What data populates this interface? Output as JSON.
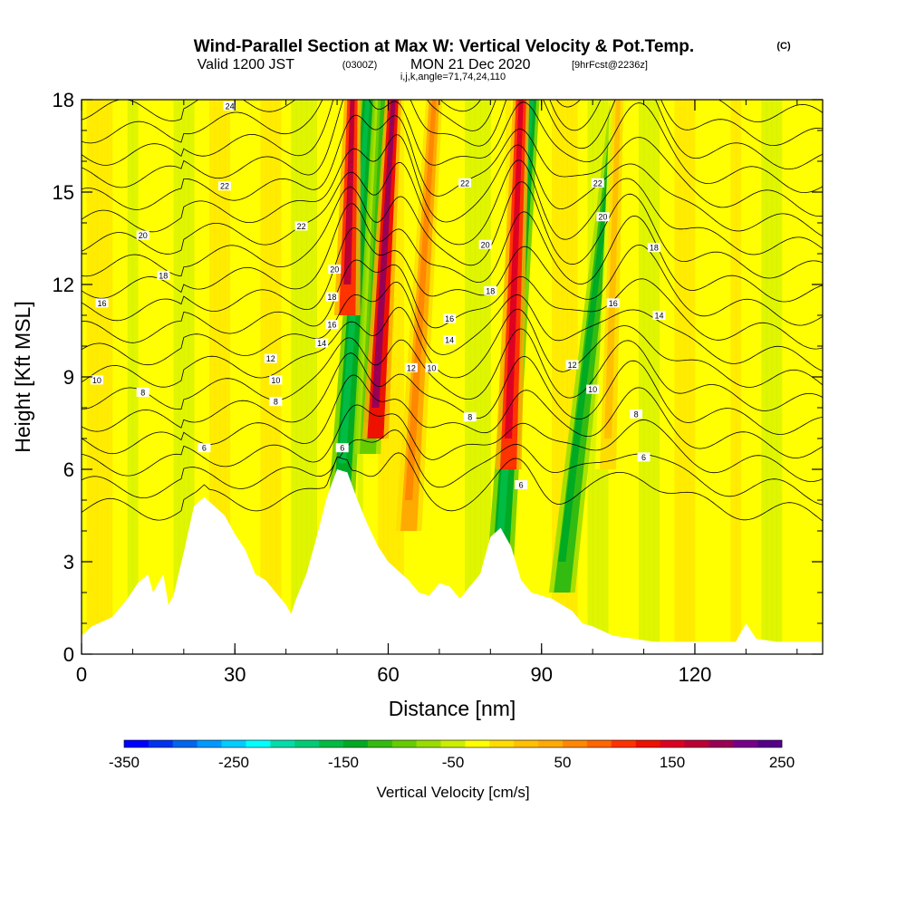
{
  "title": {
    "main": "Wind-Parallel Section at Max W: Vertical Velocity & Pot.Temp.",
    "copyright": "(C)",
    "valid_prefix": "Valid 1200 JST",
    "valid_utc": "(0300Z)",
    "valid_date": "MON 21 Dec 2020",
    "forecast": "[9hrFcst@2236z]",
    "indices": "i,j,k,angle=71,74,24,110"
  },
  "chart_data": {
    "type": "heatmap",
    "xlabel": "Distance [nm]",
    "ylabel": "Height [Kft MSL]",
    "xlim": [
      0,
      145
    ],
    "ylim": [
      0,
      18
    ],
    "xticks": [
      0,
      30,
      60,
      90,
      120
    ],
    "yticks": [
      0,
      3,
      6,
      9,
      12,
      15,
      18
    ],
    "terrain": [
      [
        0,
        0.6
      ],
      [
        2,
        0.9
      ],
      [
        6,
        1.2
      ],
      [
        9,
        1.8
      ],
      [
        11,
        2.3
      ],
      [
        13,
        2.6
      ],
      [
        14,
        2.0
      ],
      [
        16,
        2.6
      ],
      [
        17,
        1.6
      ],
      [
        18,
        1.9
      ],
      [
        20,
        3.3
      ],
      [
        22,
        4.8
      ],
      [
        24,
        5.1
      ],
      [
        26,
        4.8
      ],
      [
        28,
        4.5
      ],
      [
        30,
        3.9
      ],
      [
        32,
        3.4
      ],
      [
        34,
        2.6
      ],
      [
        36,
        2.4
      ],
      [
        38,
        2.0
      ],
      [
        40,
        1.6
      ],
      [
        41,
        1.3
      ],
      [
        42,
        1.8
      ],
      [
        44,
        2.6
      ],
      [
        46,
        3.8
      ],
      [
        48,
        5.1
      ],
      [
        50,
        6.0
      ],
      [
        52,
        5.9
      ],
      [
        54,
        5.0
      ],
      [
        56,
        4.2
      ],
      [
        58,
        3.5
      ],
      [
        60,
        3.0
      ],
      [
        62,
        2.7
      ],
      [
        64,
        2.4
      ],
      [
        66,
        2.0
      ],
      [
        68,
        1.9
      ],
      [
        70,
        2.3
      ],
      [
        72,
        2.2
      ],
      [
        74,
        1.8
      ],
      [
        76,
        2.2
      ],
      [
        78,
        2.6
      ],
      [
        80,
        3.8
      ],
      [
        82,
        4.1
      ],
      [
        84,
        3.5
      ],
      [
        86,
        2.4
      ],
      [
        88,
        2.0
      ],
      [
        90,
        1.9
      ],
      [
        92,
        1.8
      ],
      [
        94,
        1.6
      ],
      [
        96,
        1.4
      ],
      [
        98,
        1.0
      ],
      [
        100,
        0.9
      ],
      [
        104,
        0.6
      ],
      [
        108,
        0.5
      ],
      [
        112,
        0.4
      ],
      [
        116,
        0.4
      ],
      [
        120,
        0.4
      ],
      [
        124,
        0.4
      ],
      [
        128,
        0.4
      ],
      [
        130,
        1.0
      ],
      [
        132,
        0.5
      ],
      [
        136,
        0.4
      ],
      [
        140,
        0.4
      ],
      [
        145,
        0.4
      ]
    ],
    "updrafts": [
      {
        "x_base": 52,
        "x_top": 53,
        "y_start": 11,
        "w": 230
      },
      {
        "x_base": 57.5,
        "x_top": 61,
        "y_start": 7,
        "w": 250
      },
      {
        "x_base": 64,
        "x_top": 69,
        "y_start": 4,
        "w": 120
      },
      {
        "x_base": 83.5,
        "x_top": 86,
        "y_start": 6,
        "w": 220
      },
      {
        "x_base": 103,
        "x_top": 105,
        "y_start": 6,
        "w": 60
      }
    ],
    "downdrafts": [
      {
        "x_base": 51,
        "x_top": 56,
        "y_start": 5.2,
        "w": -150
      },
      {
        "x_base": 56,
        "x_top": 59,
        "y_start": 6.5,
        "w": -90
      },
      {
        "x_base": 82,
        "x_top": 88,
        "y_start": 3.0,
        "w": -150
      },
      {
        "x_base": 94,
        "x_top": 105,
        "y_start": 2.0,
        "w": -110
      }
    ],
    "theta_levels": [
      6,
      7,
      8,
      9,
      10,
      11,
      12,
      13,
      14,
      15,
      16,
      17,
      18,
      19,
      20,
      21,
      22,
      23,
      24
    ],
    "contour_labels": [
      {
        "x": 29,
        "y": 17.8,
        "text": "24"
      },
      {
        "x": 28,
        "y": 15.2,
        "text": "22"
      },
      {
        "x": 43,
        "y": 13.9,
        "text": "22"
      },
      {
        "x": 75,
        "y": 15.3,
        "text": "22"
      },
      {
        "x": 101,
        "y": 15.3,
        "text": "22"
      },
      {
        "x": 12,
        "y": 13.6,
        "text": "20"
      },
      {
        "x": 49.5,
        "y": 12.5,
        "text": "20"
      },
      {
        "x": 79,
        "y": 13.3,
        "text": "20"
      },
      {
        "x": 102,
        "y": 14.2,
        "text": "20"
      },
      {
        "x": 16,
        "y": 12.3,
        "text": "18"
      },
      {
        "x": 49,
        "y": 11.6,
        "text": "18"
      },
      {
        "x": 80,
        "y": 11.8,
        "text": "18"
      },
      {
        "x": 112,
        "y": 13.2,
        "text": "18"
      },
      {
        "x": 4,
        "y": 11.4,
        "text": "16"
      },
      {
        "x": 49,
        "y": 10.7,
        "text": "16"
      },
      {
        "x": 72,
        "y": 10.9,
        "text": "16"
      },
      {
        "x": 104,
        "y": 11.4,
        "text": "16"
      },
      {
        "x": 47,
        "y": 10.1,
        "text": "14"
      },
      {
        "x": 72,
        "y": 10.2,
        "text": "14"
      },
      {
        "x": 113,
        "y": 11.0,
        "text": "14"
      },
      {
        "x": 37,
        "y": 9.6,
        "text": "12"
      },
      {
        "x": 64.5,
        "y": 9.3,
        "text": "12"
      },
      {
        "x": 96,
        "y": 9.4,
        "text": "12"
      },
      {
        "x": 3,
        "y": 8.9,
        "text": "10"
      },
      {
        "x": 38,
        "y": 8.9,
        "text": "10"
      },
      {
        "x": 68.5,
        "y": 9.3,
        "text": "10"
      },
      {
        "x": 100,
        "y": 8.6,
        "text": "10"
      },
      {
        "x": 12,
        "y": 8.5,
        "text": "8"
      },
      {
        "x": 38,
        "y": 8.2,
        "text": "8"
      },
      {
        "x": 76,
        "y": 7.7,
        "text": "8"
      },
      {
        "x": 108.5,
        "y": 7.8,
        "text": "8"
      },
      {
        "x": 24,
        "y": 6.7,
        "text": "6"
      },
      {
        "x": 51,
        "y": 6.7,
        "text": "6"
      },
      {
        "x": 86,
        "y": 5.5,
        "text": "6"
      },
      {
        "x": 110,
        "y": 6.4,
        "text": "6"
      }
    ],
    "colorbar": {
      "label": "Vertical Velocity [cm/s]",
      "vmin": -350,
      "vmax": 250,
      "step": 25,
      "tick_labels": [
        "-350",
        "-250",
        "-150",
        "-50",
        "50",
        "150",
        "250"
      ],
      "colors": [
        "#0000ff",
        "#0033ee",
        "#0066ee",
        "#0099ff",
        "#00ccff",
        "#00ffff",
        "#00ddaa",
        "#00cc77",
        "#00bb44",
        "#00aa22",
        "#33bb11",
        "#66cc00",
        "#99dd00",
        "#ccee00",
        "#ffff00",
        "#ffdd00",
        "#ffc000",
        "#ffaa00",
        "#ff8800",
        "#ff6600",
        "#ff3300",
        "#ee1100",
        "#dd0022",
        "#bb0033",
        "#990055",
        "#770088",
        "#550088"
      ]
    }
  }
}
